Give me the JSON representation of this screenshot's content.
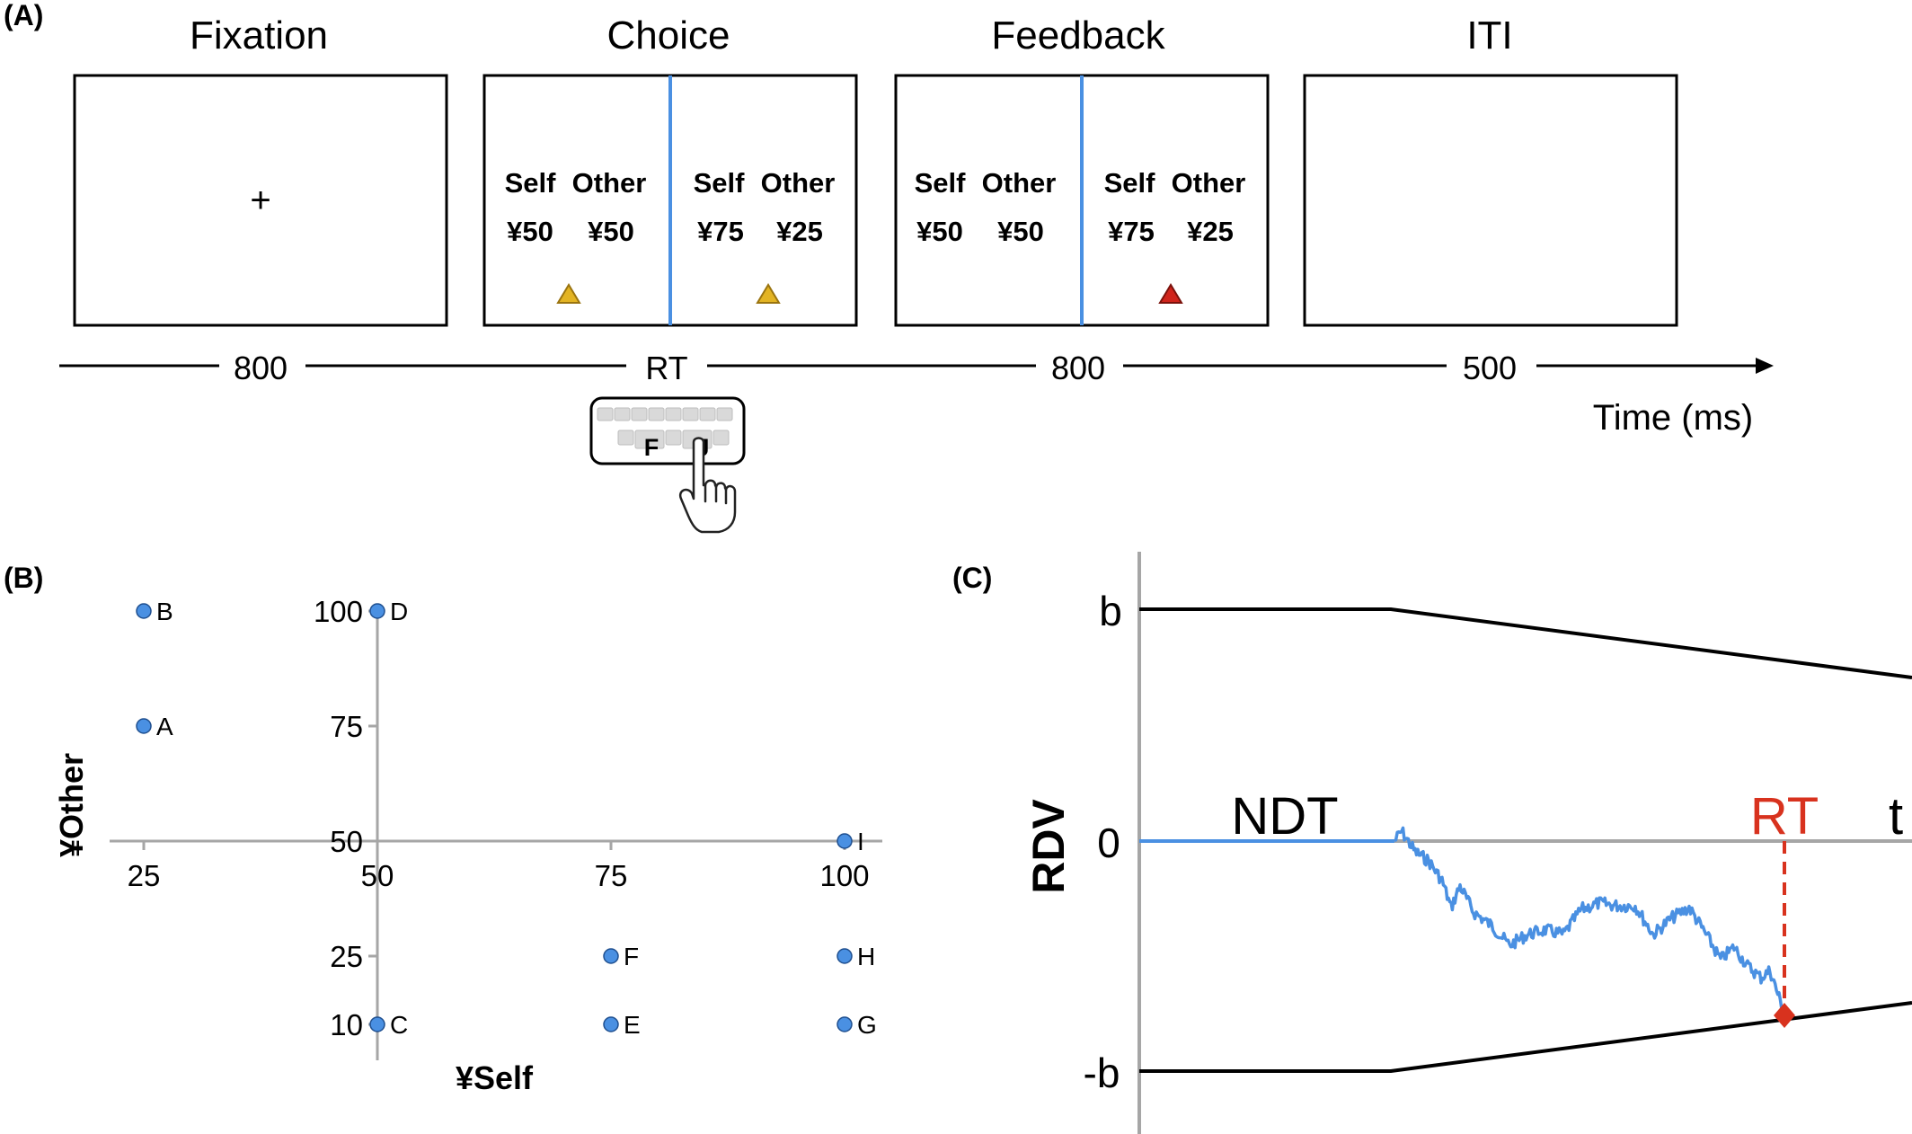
{
  "panel_a": {
    "label": "(A)",
    "stages": [
      {
        "title": "Fixation",
        "content": "+"
      },
      {
        "title": "Choice"
      },
      {
        "title": "Feedback"
      },
      {
        "title": "ITI"
      }
    ],
    "option_header": {
      "self": "Self",
      "other": "Other"
    },
    "options": {
      "left": {
        "self": "¥50",
        "other": "¥50"
      },
      "right": {
        "self": "¥75",
        "other": "¥25"
      }
    },
    "durations": [
      "800",
      "RT",
      "800",
      "500"
    ],
    "time_label": "Time (ms)",
    "keys": {
      "left": "F",
      "right": "J"
    },
    "colors": {
      "divider": "#4a90e2",
      "marker": "#e3b424",
      "marker_chosen": "#d0241c"
    }
  },
  "panel_b": {
    "label": "(B)",
    "chart_data": {
      "type": "scatter",
      "xlabel": "¥Self",
      "ylabel": "¥Other",
      "x_ticks": [
        "25",
        "50",
        "75",
        "100"
      ],
      "y_ticks": [
        "10",
        "25",
        "50",
        "75",
        "100"
      ],
      "points": [
        {
          "label": "A",
          "x": 25,
          "y": 75
        },
        {
          "label": "B",
          "x": 25,
          "y": 100
        },
        {
          "label": "C",
          "x": 50,
          "y": 10
        },
        {
          "label": "D",
          "x": 50,
          "y": 100
        },
        {
          "label": "E",
          "x": 75,
          "y": 10
        },
        {
          "label": "F",
          "x": 75,
          "y": 25
        },
        {
          "label": "G",
          "x": 100,
          "y": 10
        },
        {
          "label": "H",
          "x": 100,
          "y": 25
        },
        {
          "label": "I",
          "x": 100,
          "y": 50
        }
      ],
      "point_color": "#4a90e2"
    }
  },
  "panel_c": {
    "label": "(C)",
    "ylabel": "RDV",
    "y_labels": {
      "upper": "b",
      "zero": "0",
      "lower": "-b"
    },
    "ndt_label": "NDT",
    "rt_label": "RT",
    "t_label": "t",
    "colors": {
      "path": "#4a90e2",
      "rt": "#d8321e",
      "boundary": "#000000",
      "axis": "#a6a6a6"
    }
  }
}
